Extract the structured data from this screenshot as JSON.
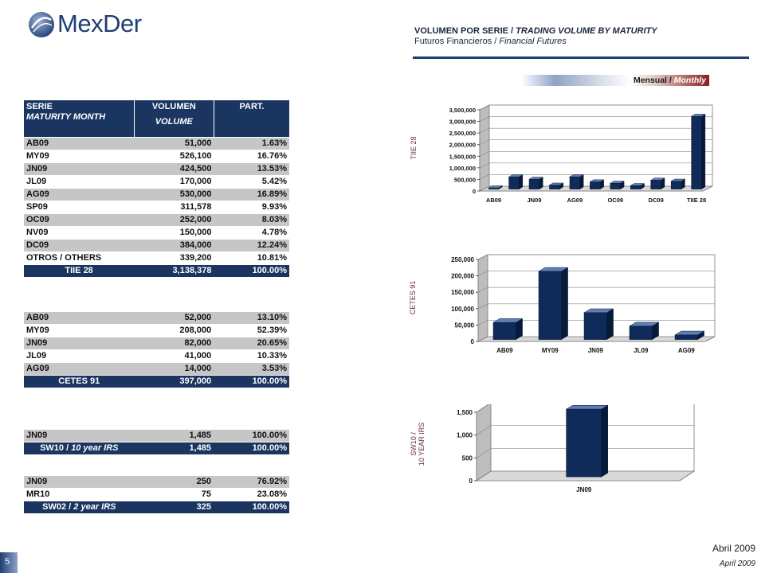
{
  "brand": {
    "name": "MexDer"
  },
  "header": {
    "title_es": "VOLUMEN POR SERIE",
    "title_en": "TRADING VOLUME BY MATURITY",
    "sub_es": "Futuros Financieros",
    "sub_en": "Financial Futures",
    "sep": " / "
  },
  "period": {
    "es": "Mensual",
    "en": "Monthly"
  },
  "table_headers": {
    "serie": "SERIE",
    "maturity": "MATURITY MONTH",
    "volumen": "VOLUMEN",
    "volume": "VOLUME",
    "part": "PART."
  },
  "tables": [
    {
      "rows": [
        [
          "AB09",
          "51,000",
          "1.63%"
        ],
        [
          "MY09",
          "526,100",
          "16.76%"
        ],
        [
          "JN09",
          "424,500",
          "13.53%"
        ],
        [
          "JL09",
          "170,000",
          "5.42%"
        ],
        [
          "AG09",
          "530,000",
          "16.89%"
        ],
        [
          "SP09",
          "311,578",
          "9.93%"
        ],
        [
          "OC09",
          "252,000",
          "8.03%"
        ],
        [
          "NV09",
          "150,000",
          "4.78%"
        ],
        [
          "DC09",
          "384,000",
          "12.24%"
        ],
        [
          "OTROS / OTHERS",
          "339,200",
          "10.81%"
        ]
      ],
      "total": [
        "TIIE 28",
        "3,138,378",
        "100.00%"
      ]
    },
    {
      "rows": [
        [
          "AB09",
          "52,000",
          "13.10%"
        ],
        [
          "MY09",
          "208,000",
          "52.39%"
        ],
        [
          "JN09",
          "82,000",
          "20.65%"
        ],
        [
          "JL09",
          "41,000",
          "10.33%"
        ],
        [
          "AG09",
          "14,000",
          "3.53%"
        ]
      ],
      "total": [
        "CETES 91",
        "397,000",
        "100.00%"
      ]
    },
    {
      "rows": [
        [
          "JN09",
          "1,485",
          "100.00%"
        ]
      ],
      "total": [
        "SW10 / 10 year IRS",
        "1,485",
        "100.00%"
      ]
    },
    {
      "rows": [
        [
          "JN09",
          "250",
          "76.92%"
        ],
        [
          "MR10",
          "75",
          "23.08%"
        ]
      ],
      "total": [
        "SW02 / 2 year IRS",
        "325",
        "100.00%"
      ]
    }
  ],
  "chart_data": [
    {
      "type": "bar",
      "label": "TIIE 28",
      "values": [
        51000,
        526100,
        424500,
        170000,
        530000,
        311578,
        252000,
        150000,
        384000,
        339200,
        3138378
      ],
      "x_labels": [
        "AB09",
        "",
        "JN09",
        "",
        "AG09",
        "",
        "OC09",
        "",
        "DC09",
        "",
        "TIIE 28"
      ],
      "yticks": [
        0,
        500000,
        1000000,
        1500000,
        2000000,
        2500000,
        3000000,
        3500000
      ],
      "ytick_labels": [
        "0",
        "500,000",
        "1,000,000",
        "1,500,000",
        "2,000,000",
        "2,500,000",
        "3,000,000",
        "3,500,000"
      ],
      "ylim": [
        0,
        3500000
      ],
      "grid": true
    },
    {
      "type": "bar",
      "label": "CETES 91",
      "values": [
        52000,
        208000,
        82000,
        41000,
        14000
      ],
      "x_labels": [
        "AB09",
        "MY09",
        "JN09",
        "JL09",
        "AG09"
      ],
      "yticks": [
        0,
        50000,
        100000,
        150000,
        200000,
        250000
      ],
      "ytick_labels": [
        "0",
        "50,000",
        "100,000",
        "150,000",
        "200,000",
        "250,000"
      ],
      "ylim": [
        0,
        250000
      ],
      "grid": true
    },
    {
      "type": "bar",
      "label": "SW10 / 10 YEAR IRS",
      "values": [
        1485
      ],
      "x_labels": [
        "JN09"
      ],
      "yticks": [
        0,
        500,
        1000,
        1500
      ],
      "ytick_labels": [
        "0",
        "500",
        "1,000",
        "1,500"
      ],
      "ylim": [
        0,
        1500
      ],
      "grid": true
    }
  ],
  "footer": {
    "es": "Abril 2009",
    "en": "April 2009",
    "page": "5"
  },
  "colors": {
    "navy": "#1a3560",
    "bar": "#0f2b5a",
    "gray": "#c6c6c6"
  }
}
